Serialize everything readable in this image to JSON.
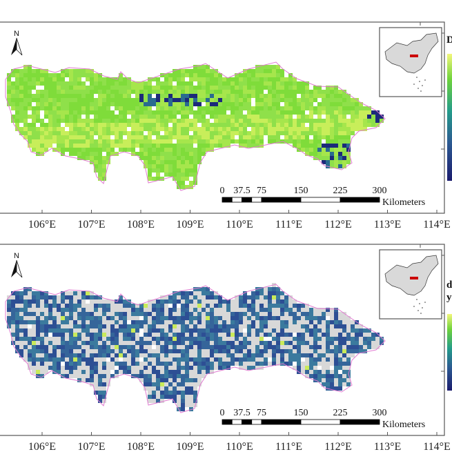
{
  "axis": {
    "longitude_ticks": [
      "106°E",
      "107°E",
      "108°E",
      "109°E",
      "110°E",
      "111°E",
      "112°E",
      "113°E",
      "114°E"
    ]
  },
  "scale_bar": {
    "labels": [
      "0",
      "37.5",
      "75",
      "150",
      "225",
      "300"
    ],
    "unit": "Kilometers"
  },
  "north_arrow": {
    "label": "N"
  },
  "colors": {
    "frame": "#555555",
    "boundary": "#e07ad0",
    "highlight_region": "#cc0000",
    "inset_land": "#d9d9d9",
    "viridis_low": "#1a1f6e",
    "viridis_mid": "#2a8c8c",
    "viridis_high": "#f5f57a"
  },
  "panels": [
    {
      "id": "top",
      "legend_title": "D",
      "style": "green"
    },
    {
      "id": "bottom",
      "legend_title_lines": [
        "d",
        "y"
      ],
      "style": "blue"
    }
  ]
}
